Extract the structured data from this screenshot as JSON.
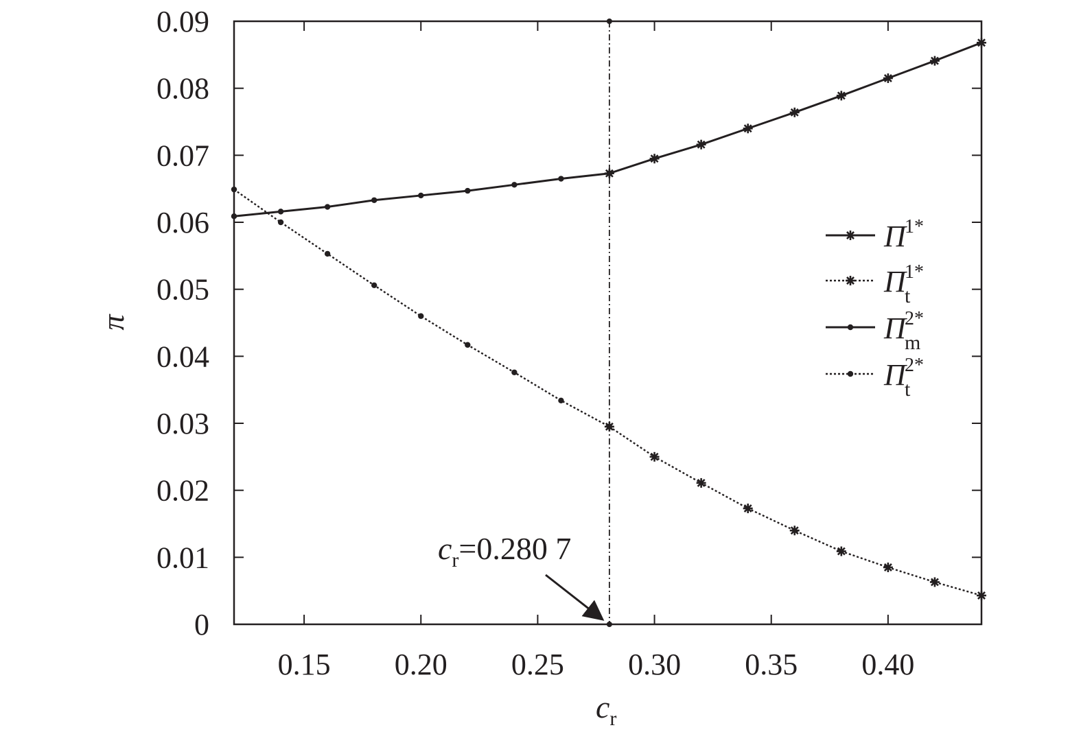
{
  "chart_data": {
    "type": "line",
    "xlabel": {
      "main": "c",
      "sub": "r"
    },
    "ylabel": "π",
    "xlim": [
      0.12,
      0.44
    ],
    "ylim": [
      0,
      0.09
    ],
    "xticks": [
      "0.15",
      "0.20",
      "0.25",
      "0.30",
      "0.35",
      "0.40"
    ],
    "xtick_values": [
      0.15,
      0.2,
      0.25,
      0.3,
      0.35,
      0.4
    ],
    "yticks": [
      "0",
      "0.01",
      "0.02",
      "0.03",
      "0.04",
      "0.05",
      "0.06",
      "0.07",
      "0.08",
      "0.09"
    ],
    "ytick_values": [
      0,
      0.01,
      0.02,
      0.03,
      0.04,
      0.05,
      0.06,
      0.07,
      0.08,
      0.09
    ],
    "grid": false,
    "legend_position": "right",
    "series": [
      {
        "name": "Π1*",
        "legend": {
          "main": "Π",
          "sup": "1*",
          "sub": ""
        },
        "line": "solid",
        "marker": "star",
        "x": [
          0.2807,
          0.3,
          0.32,
          0.34,
          0.36,
          0.38,
          0.4,
          0.42,
          0.44
        ],
        "y": [
          0.0673,
          0.0695,
          0.0716,
          0.074,
          0.0764,
          0.0789,
          0.0815,
          0.0841,
          0.0868
        ]
      },
      {
        "name": "Πt1*",
        "legend": {
          "main": "Π",
          "sup": "1*",
          "sub": "t"
        },
        "line": "dotted",
        "marker": "star",
        "x": [
          0.2807,
          0.3,
          0.32,
          0.34,
          0.36,
          0.38,
          0.4,
          0.42,
          0.44
        ],
        "y": [
          0.0295,
          0.025,
          0.0211,
          0.0173,
          0.014,
          0.0109,
          0.0085,
          0.0063,
          0.0043
        ]
      },
      {
        "name": "Πm2*",
        "legend": {
          "main": "Π",
          "sup": "2*",
          "sub": "m"
        },
        "line": "solid",
        "marker": "dot",
        "x": [
          0.12,
          0.14,
          0.16,
          0.18,
          0.2,
          0.22,
          0.24,
          0.26,
          0.2807
        ],
        "y": [
          0.0609,
          0.0616,
          0.0623,
          0.0633,
          0.064,
          0.0647,
          0.0656,
          0.0665,
          0.0673
        ]
      },
      {
        "name": "Πt2*",
        "legend": {
          "main": "Π",
          "sup": "2*",
          "sub": "t"
        },
        "line": "dotted",
        "marker": "dot",
        "x": [
          0.12,
          0.14,
          0.16,
          0.18,
          0.2,
          0.22,
          0.24,
          0.26,
          0.2807
        ],
        "y": [
          0.0649,
          0.06,
          0.0553,
          0.0506,
          0.046,
          0.0417,
          0.0376,
          0.0334,
          0.0295
        ]
      }
    ],
    "threshold": {
      "x": 0.2807,
      "label": {
        "main": "c",
        "sub": "r",
        "value": "=0.280 7"
      }
    }
  }
}
